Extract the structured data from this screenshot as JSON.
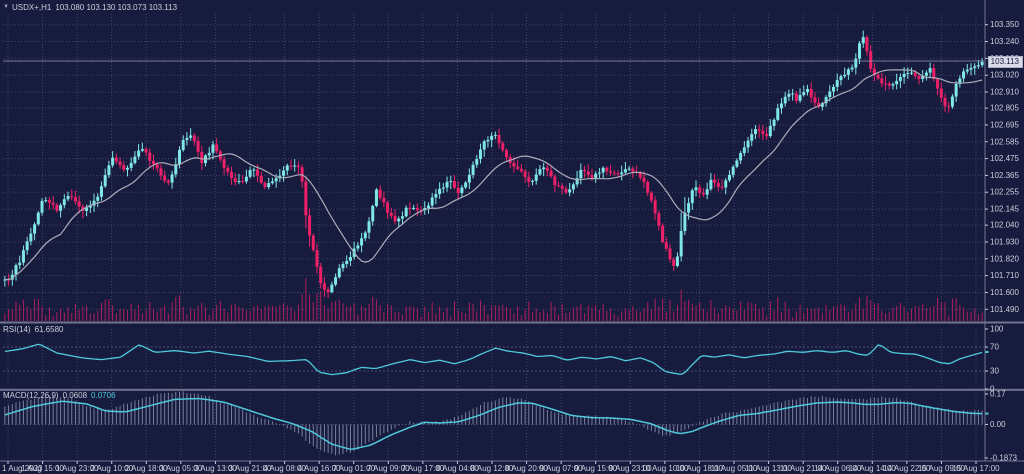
{
  "header": {
    "collapse_icon": "▼",
    "symbol_timeframe": "USDX+,H1",
    "ohlc_text": "103.080 103.130 103.073 103.113"
  },
  "price_axis": {
    "labels": [
      "103.350",
      "103.240",
      "103.130",
      "103.020",
      "102.910",
      "102.805",
      "102.695",
      "102.585",
      "102.475",
      "102.365",
      "102.255",
      "102.145",
      "102.040",
      "101.930",
      "101.820",
      "101.710",
      "101.600",
      "101.490"
    ],
    "bid_tag": "103.113",
    "bid_value": 103.113
  },
  "rsi_axis": {
    "labels": [
      "100",
      "70",
      "30",
      "0"
    ]
  },
  "macd_axis": {
    "labels": [
      "0.17",
      "0.00",
      "-0.1873"
    ]
  },
  "time_axis": {
    "labels": [
      "1 Aug 2023",
      "1 Aug 15:00",
      "1 Aug 23:00",
      "2 Aug 10:00",
      "2 Aug 18:00",
      "3 Aug 05:00",
      "3 Aug 13:00",
      "3 Aug 21:00",
      "4 Aug 08:00",
      "4 Aug 16:00",
      "7 Aug 01:00",
      "7 Aug 09:00",
      "7 Aug 17:00",
      "8 Aug 04:00",
      "8 Aug 12:00",
      "8 Aug 20:00",
      "9 Aug 07:00",
      "9 Aug 15:00",
      "9 Aug 23:00",
      "10 Aug 10:00",
      "10 Aug 18:00",
      "11 Aug 05:00",
      "11 Aug 13:00",
      "11 Aug 21:00",
      "14 Aug 06:00",
      "14 Aug 14:00",
      "14 Aug 22:00",
      "15 Aug 09:00",
      "15 Aug 17:00"
    ]
  },
  "rsi_pane": {
    "label": "RSI(14)",
    "value": "61.6580"
  },
  "macd_pane": {
    "label": "MACD(12,26,9)",
    "value": "0.0608",
    "signal_value": "0.0706"
  },
  "colors": {
    "background": "#171b3d",
    "bull": "#7fe8e6",
    "bear": "#ee2168",
    "volume": "#b01e5e",
    "ma_line": "#aaaeba",
    "indicator_line": "#4ecadb",
    "histogram": "#9298b6",
    "grid": "#41466b",
    "level_dash": "#4a4f76",
    "text": "#ccd0dd",
    "separator": "#70758f",
    "bid_line": "#9aa0b4",
    "price_tag_bg": "#d9dce8"
  },
  "chart_data": [
    {
      "type": "candlestick",
      "name": "USDX+ H1 price",
      "ylim": [
        101.42,
        103.42
      ],
      "n_candles": 264,
      "x_range": [
        "1 Aug 2023",
        "15 Aug 17:00"
      ],
      "last_ohlc": {
        "open": 103.08,
        "high": 103.13,
        "low": 103.073,
        "close": 103.113
      },
      "close_path": [
        [
          0.005,
          101.68
        ],
        [
          0.018,
          101.82
        ],
        [
          0.03,
          102.02
        ],
        [
          0.041,
          102.22
        ],
        [
          0.055,
          102.14
        ],
        [
          0.068,
          102.26
        ],
        [
          0.08,
          102.12
        ],
        [
          0.095,
          102.2
        ],
        [
          0.112,
          102.5
        ],
        [
          0.125,
          102.38
        ],
        [
          0.14,
          102.55
        ],
        [
          0.155,
          102.42
        ],
        [
          0.168,
          102.3
        ],
        [
          0.183,
          102.58
        ],
        [
          0.193,
          102.64
        ],
        [
          0.203,
          102.45
        ],
        [
          0.214,
          102.56
        ],
        [
          0.228,
          102.38
        ],
        [
          0.243,
          102.3
        ],
        [
          0.255,
          102.42
        ],
        [
          0.266,
          102.27
        ],
        [
          0.28,
          102.36
        ],
        [
          0.293,
          102.44
        ],
        [
          0.303,
          102.42
        ],
        [
          0.31,
          102.05
        ],
        [
          0.322,
          101.7
        ],
        [
          0.33,
          101.57
        ],
        [
          0.342,
          101.74
        ],
        [
          0.356,
          101.86
        ],
        [
          0.37,
          102.0
        ],
        [
          0.381,
          102.28
        ],
        [
          0.392,
          102.12
        ],
        [
          0.401,
          102.07
        ],
        [
          0.414,
          102.16
        ],
        [
          0.428,
          102.12
        ],
        [
          0.442,
          102.26
        ],
        [
          0.455,
          102.33
        ],
        [
          0.466,
          102.25
        ],
        [
          0.479,
          102.42
        ],
        [
          0.492,
          102.6
        ],
        [
          0.5,
          102.64
        ],
        [
          0.513,
          102.48
        ],
        [
          0.525,
          102.4
        ],
        [
          0.538,
          102.32
        ],
        [
          0.55,
          102.44
        ],
        [
          0.563,
          102.3
        ],
        [
          0.576,
          102.26
        ],
        [
          0.589,
          102.4
        ],
        [
          0.6,
          102.34
        ],
        [
          0.612,
          102.42
        ],
        [
          0.625,
          102.36
        ],
        [
          0.638,
          102.42
        ],
        [
          0.65,
          102.36
        ],
        [
          0.66,
          102.22
        ],
        [
          0.672,
          101.95
        ],
        [
          0.68,
          101.8
        ],
        [
          0.686,
          101.78
        ],
        [
          0.694,
          102.1
        ],
        [
          0.704,
          102.3
        ],
        [
          0.713,
          102.22
        ],
        [
          0.722,
          102.35
        ],
        [
          0.732,
          102.28
        ],
        [
          0.744,
          102.42
        ],
        [
          0.756,
          102.55
        ],
        [
          0.768,
          102.68
        ],
        [
          0.778,
          102.62
        ],
        [
          0.79,
          102.8
        ],
        [
          0.8,
          102.92
        ],
        [
          0.81,
          102.86
        ],
        [
          0.82,
          102.94
        ],
        [
          0.83,
          102.8
        ],
        [
          0.843,
          102.92
        ],
        [
          0.855,
          103.02
        ],
        [
          0.866,
          103.06
        ],
        [
          0.876,
          103.3
        ],
        [
          0.884,
          103.08
        ],
        [
          0.893,
          102.98
        ],
        [
          0.903,
          102.94
        ],
        [
          0.913,
          103.0
        ],
        [
          0.924,
          103.04
        ],
        [
          0.934,
          102.99
        ],
        [
          0.945,
          103.06
        ],
        [
          0.955,
          102.88
        ],
        [
          0.963,
          102.78
        ],
        [
          0.972,
          102.96
        ],
        [
          0.981,
          103.06
        ],
        [
          1.0,
          103.113
        ]
      ],
      "overlay_ma": {
        "name": "moving-average",
        "window": 16
      }
    },
    {
      "type": "line",
      "name": "RSI(14)",
      "ylim": [
        0,
        100
      ],
      "levels": [
        30,
        70
      ],
      "last_value": 61.658,
      "path": [
        [
          0.0,
          62
        ],
        [
          0.02,
          67
        ],
        [
          0.037,
          75
        ],
        [
          0.055,
          60
        ],
        [
          0.08,
          52
        ],
        [
          0.1,
          49
        ],
        [
          0.12,
          53
        ],
        [
          0.139,
          74
        ],
        [
          0.155,
          61
        ],
        [
          0.175,
          64
        ],
        [
          0.195,
          60
        ],
        [
          0.21,
          63
        ],
        [
          0.23,
          58
        ],
        [
          0.25,
          54
        ],
        [
          0.27,
          46
        ],
        [
          0.29,
          47
        ],
        [
          0.31,
          49
        ],
        [
          0.322,
          28
        ],
        [
          0.335,
          24
        ],
        [
          0.35,
          27
        ],
        [
          0.365,
          36
        ],
        [
          0.38,
          34
        ],
        [
          0.4,
          43
        ],
        [
          0.415,
          49
        ],
        [
          0.43,
          44
        ],
        [
          0.445,
          48
        ],
        [
          0.46,
          42
        ],
        [
          0.475,
          49
        ],
        [
          0.49,
          60
        ],
        [
          0.502,
          68
        ],
        [
          0.515,
          63
        ],
        [
          0.53,
          60
        ],
        [
          0.545,
          54
        ],
        [
          0.56,
          56
        ],
        [
          0.575,
          48
        ],
        [
          0.59,
          53
        ],
        [
          0.605,
          50
        ],
        [
          0.62,
          54
        ],
        [
          0.635,
          47
        ],
        [
          0.65,
          52
        ],
        [
          0.663,
          44
        ],
        [
          0.675,
          29
        ],
        [
          0.685,
          26
        ],
        [
          0.693,
          24
        ],
        [
          0.7,
          36
        ],
        [
          0.712,
          56
        ],
        [
          0.725,
          53
        ],
        [
          0.74,
          57
        ],
        [
          0.755,
          52
        ],
        [
          0.77,
          56
        ],
        [
          0.785,
          58
        ],
        [
          0.8,
          63
        ],
        [
          0.815,
          61
        ],
        [
          0.83,
          64
        ],
        [
          0.845,
          61
        ],
        [
          0.86,
          64
        ],
        [
          0.872,
          58
        ],
        [
          0.882,
          56
        ],
        [
          0.893,
          75
        ],
        [
          0.905,
          61
        ],
        [
          0.917,
          59
        ],
        [
          0.93,
          58
        ],
        [
          0.942,
          52
        ],
        [
          0.955,
          44
        ],
        [
          0.965,
          42
        ],
        [
          0.975,
          50
        ],
        [
          0.985,
          55
        ],
        [
          1.0,
          61.66
        ]
      ]
    },
    {
      "type": "line",
      "name": "MACD(12,26,9)",
      "ylim": [
        -0.1873,
        0.17
      ],
      "histogram": true,
      "last_values": [
        0.0608,
        0.0706
      ],
      "path": [
        [
          0.0,
          0.05
        ],
        [
          0.03,
          0.1
        ],
        [
          0.06,
          0.13
        ],
        [
          0.085,
          0.115
        ],
        [
          0.105,
          0.075
        ],
        [
          0.125,
          0.07
        ],
        [
          0.15,
          0.105
        ],
        [
          0.175,
          0.14
        ],
        [
          0.2,
          0.145
        ],
        [
          0.225,
          0.125
        ],
        [
          0.25,
          0.08
        ],
        [
          0.275,
          0.035
        ],
        [
          0.295,
          0.005
        ],
        [
          0.315,
          -0.04
        ],
        [
          0.335,
          -0.11
        ],
        [
          0.355,
          -0.14
        ],
        [
          0.375,
          -0.115
        ],
        [
          0.395,
          -0.06
        ],
        [
          0.415,
          -0.015
        ],
        [
          0.43,
          0.012
        ],
        [
          0.445,
          0.008
        ],
        [
          0.465,
          0.015
        ],
        [
          0.485,
          0.05
        ],
        [
          0.505,
          0.095
        ],
        [
          0.525,
          0.12
        ],
        [
          0.54,
          0.118
        ],
        [
          0.56,
          0.085
        ],
        [
          0.58,
          0.05
        ],
        [
          0.6,
          0.038
        ],
        [
          0.62,
          0.036
        ],
        [
          0.64,
          0.028
        ],
        [
          0.66,
          0.005
        ],
        [
          0.678,
          -0.035
        ],
        [
          0.69,
          -0.052
        ],
        [
          0.702,
          -0.04
        ],
        [
          0.715,
          -0.012
        ],
        [
          0.73,
          0.018
        ],
        [
          0.75,
          0.05
        ],
        [
          0.77,
          0.062
        ],
        [
          0.79,
          0.082
        ],
        [
          0.81,
          0.103
        ],
        [
          0.83,
          0.12
        ],
        [
          0.85,
          0.125
        ],
        [
          0.865,
          0.12
        ],
        [
          0.878,
          0.112
        ],
        [
          0.892,
          0.112
        ],
        [
          0.91,
          0.122
        ],
        [
          0.925,
          0.118
        ],
        [
          0.94,
          0.1
        ],
        [
          0.955,
          0.085
        ],
        [
          0.97,
          0.072
        ],
        [
          0.985,
          0.063
        ],
        [
          1.0,
          0.06
        ]
      ]
    }
  ]
}
